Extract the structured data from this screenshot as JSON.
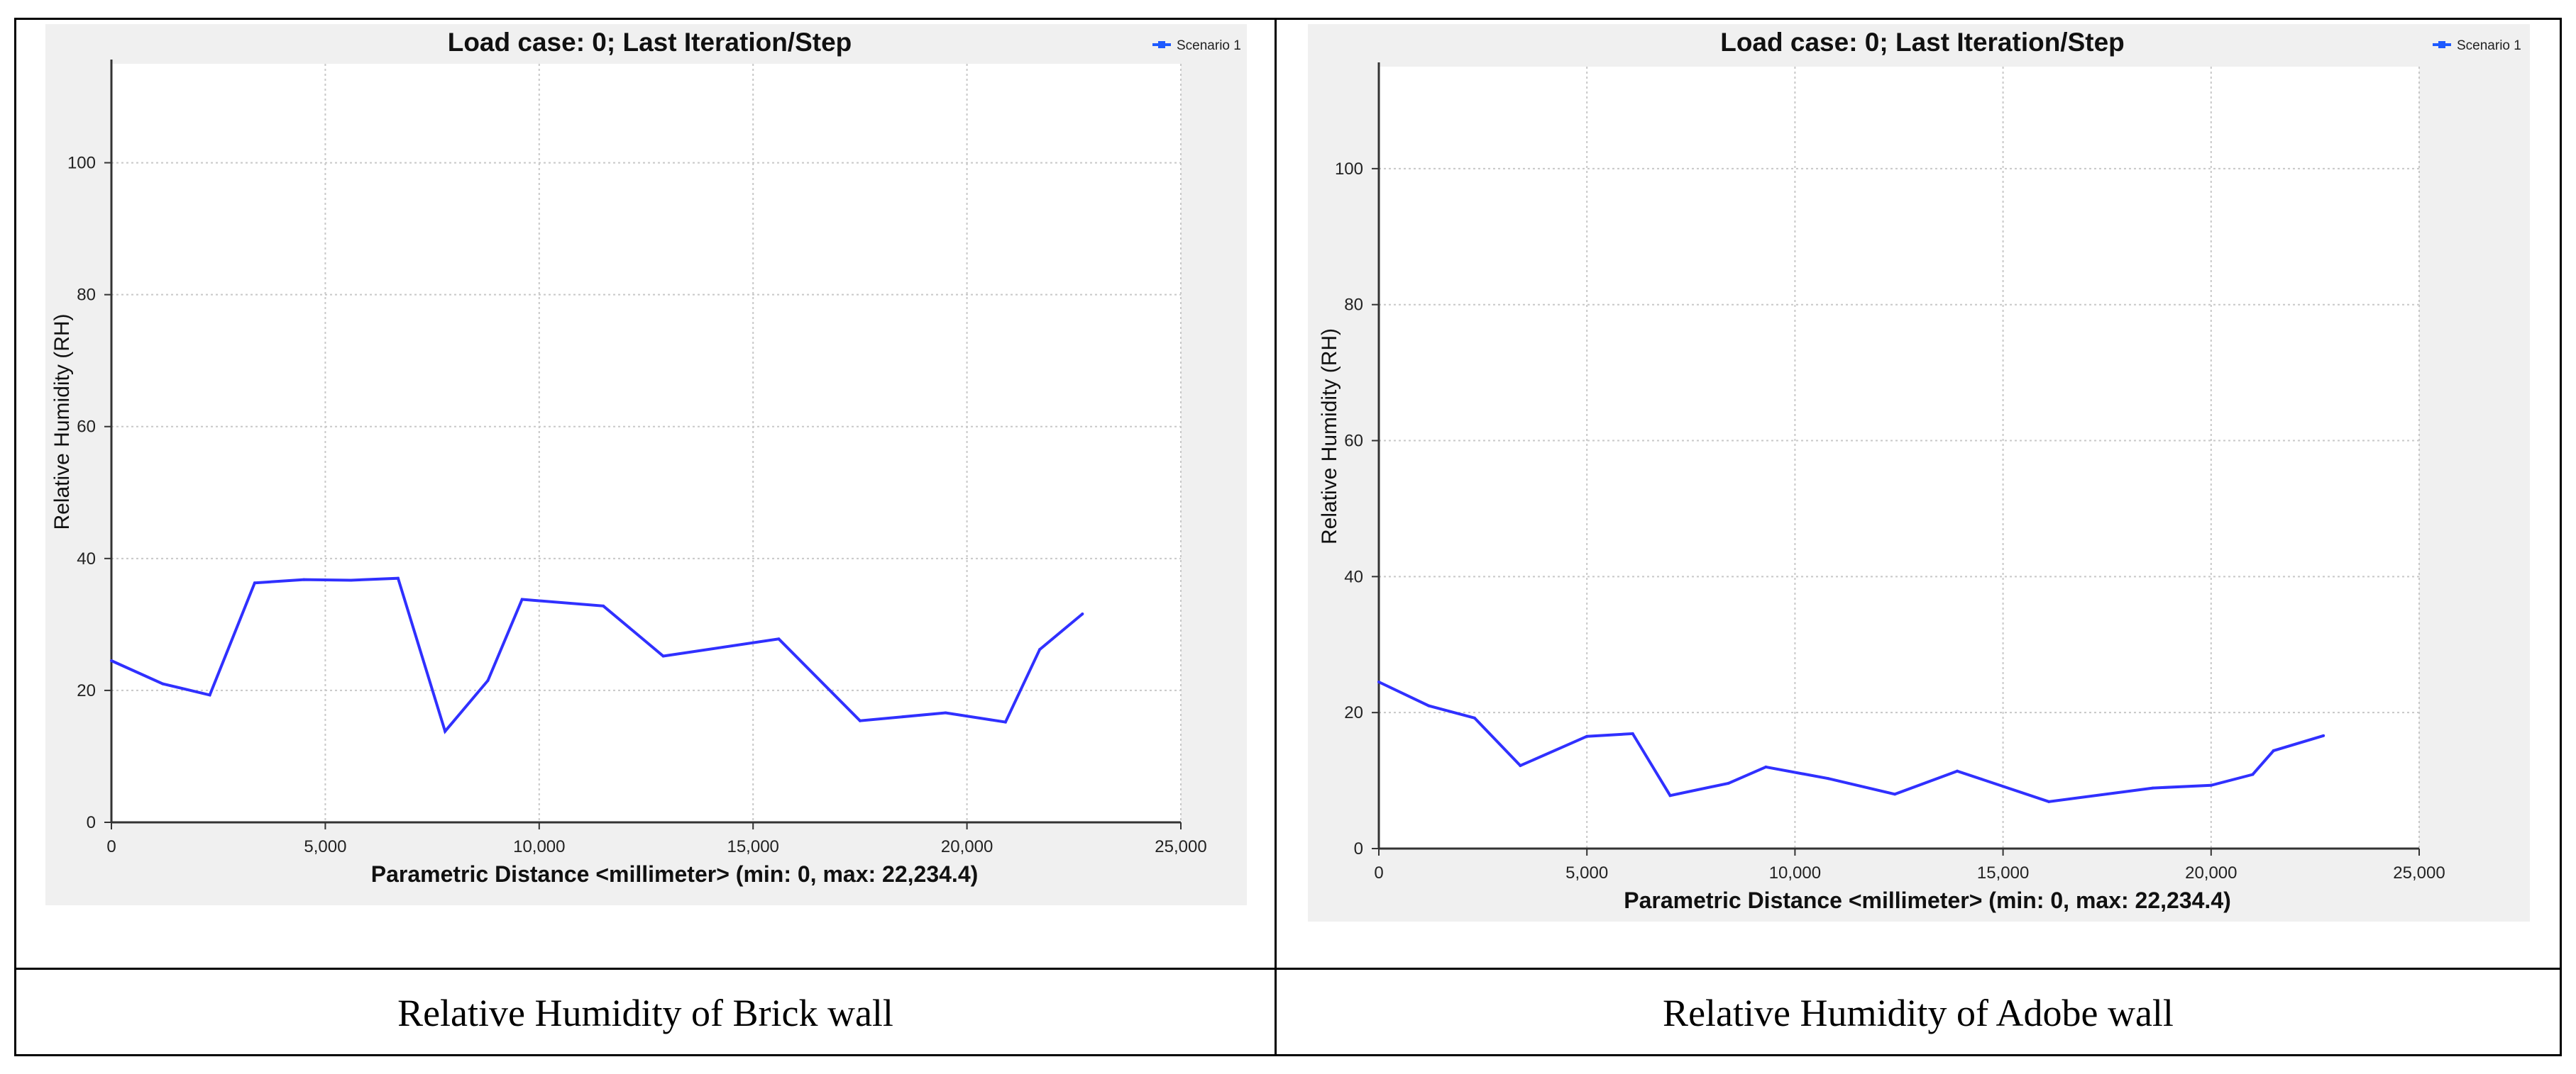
{
  "charts": [
    {
      "caption": "Relative Humidity of Brick wall",
      "chart_data": {
        "type": "line",
        "title": "Load case: 0; Last Iteration/Step",
        "xlabel": "Parametric Distance <millimeter> (min: 0, max: 22,234.4)",
        "ylabel": "Relative Humidity (RH)",
        "xlim": [
          0,
          25000
        ],
        "ylim": [
          0,
          115
        ],
        "xticks": [
          0,
          5000,
          10000,
          15000,
          20000,
          25000
        ],
        "xtick_labels": [
          "0",
          "5,000",
          "10,000",
          "15,000",
          "20,000",
          "25,000"
        ],
        "yticks": [
          0,
          20,
          40,
          60,
          80,
          100
        ],
        "ytick_labels": [
          "0",
          "20",
          "40",
          "60",
          "80",
          "100"
        ],
        "grid": true,
        "legend": "top-right",
        "series": [
          {
            "name": "Scenario 1",
            "color": "#3030ff",
            "x": [
              0,
              1200,
              2300,
              3350,
              4500,
              5600,
              6700,
              7800,
              8800,
              9600,
              11500,
              12900,
              15600,
              17500,
              19500,
              20900,
              21700,
              22700
            ],
            "y": [
              24.5,
              21,
              19.3,
              36.3,
              36.8,
              36.7,
              37,
              13.8,
              21.5,
              33.8,
              32.8,
              25.2,
              27.8,
              15.4,
              16.6,
              15.2,
              26.2,
              31.6
            ]
          }
        ]
      }
    },
    {
      "caption": "Relative Humidity of Adobe wall",
      "chart_data": {
        "type": "line",
        "title": "Load case: 0; Last Iteration/Step",
        "xlabel": "Parametric Distance <millimeter> (min: 0, max: 22,234.4)",
        "ylabel": "Relative Humidity (RH)",
        "xlim": [
          0,
          25000
        ],
        "ylim": [
          0,
          115
        ],
        "xticks": [
          0,
          5000,
          10000,
          15000,
          20000,
          25000
        ],
        "xtick_labels": [
          "0",
          "5,000",
          "10,000",
          "15,000",
          "20,000",
          "25,000"
        ],
        "yticks": [
          0,
          20,
          40,
          60,
          80,
          100
        ],
        "ytick_labels": [
          "0",
          "20",
          "40",
          "60",
          "80",
          "100"
        ],
        "grid": true,
        "legend": "top-right",
        "series": [
          {
            "name": "Scenario 1",
            "color": "#3030ff",
            "x": [
              0,
              1200,
              2300,
              3400,
              5000,
              6100,
              7000,
              8400,
              9300,
              10800,
              12400,
              13900,
              16100,
              18600,
              20000,
              21000,
              21500,
              22700
            ],
            "y": [
              24.5,
              21,
              19.2,
              12.2,
              16.5,
              16.9,
              7.8,
              9.6,
              12,
              10.3,
              8,
              11.4,
              6.9,
              8.9,
              9.3,
              10.9,
              14.4,
              16.6
            ]
          }
        ]
      }
    }
  ]
}
